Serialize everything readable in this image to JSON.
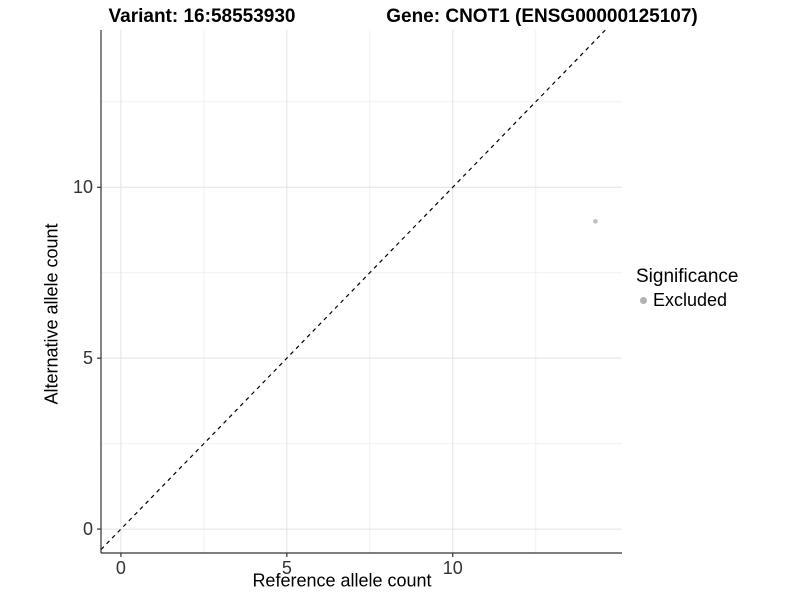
{
  "header": {
    "variant_title": "Variant: 16:58553930",
    "gene_title": "Gene: CNOT1 (ENSG00000125107)"
  },
  "axes": {
    "x_label": "Reference allele count",
    "y_label": "Alternative allele count"
  },
  "legend": {
    "title": "Significance",
    "items": [
      {
        "label": "Excluded",
        "marker": "circle-icon",
        "color": "#b2b2b2"
      }
    ]
  },
  "chart_data": {
    "type": "scatter",
    "title": "Variant: 16:58553930 | Gene: CNOT1 (ENSG00000125107)",
    "xlabel": "Reference allele count",
    "ylabel": "Alternative allele count",
    "xlim": [
      -0.6,
      15.1
    ],
    "ylim": [
      -0.7,
      14.6
    ],
    "x_ticks": [
      0,
      5,
      10
    ],
    "y_ticks": [
      0,
      5,
      10
    ],
    "x_minor_ticks": [
      2.5,
      7.5,
      12.5
    ],
    "y_minor_ticks": [
      2.5,
      7.5,
      12.5
    ],
    "grid": "major and minor gridlines, light gray on white panel",
    "legend_position": "right",
    "series": [
      {
        "name": "Excluded",
        "color": "#bebebe",
        "points": [
          [
            14.3,
            9
          ]
        ]
      }
    ],
    "reference_line": {
      "kind": "identity y = x",
      "style": "dashed",
      "color": "#000000"
    }
  },
  "colors": {
    "background": "#ffffff",
    "grid_major": "#e3e3e3",
    "grid_minor": "#f1f1f1",
    "axis_line": "#333333",
    "tick_mark": "#333333",
    "tick_text": "#333333",
    "title_text": "#000000",
    "point": "#bebebe",
    "legend_marker": "#b2b2b2"
  }
}
